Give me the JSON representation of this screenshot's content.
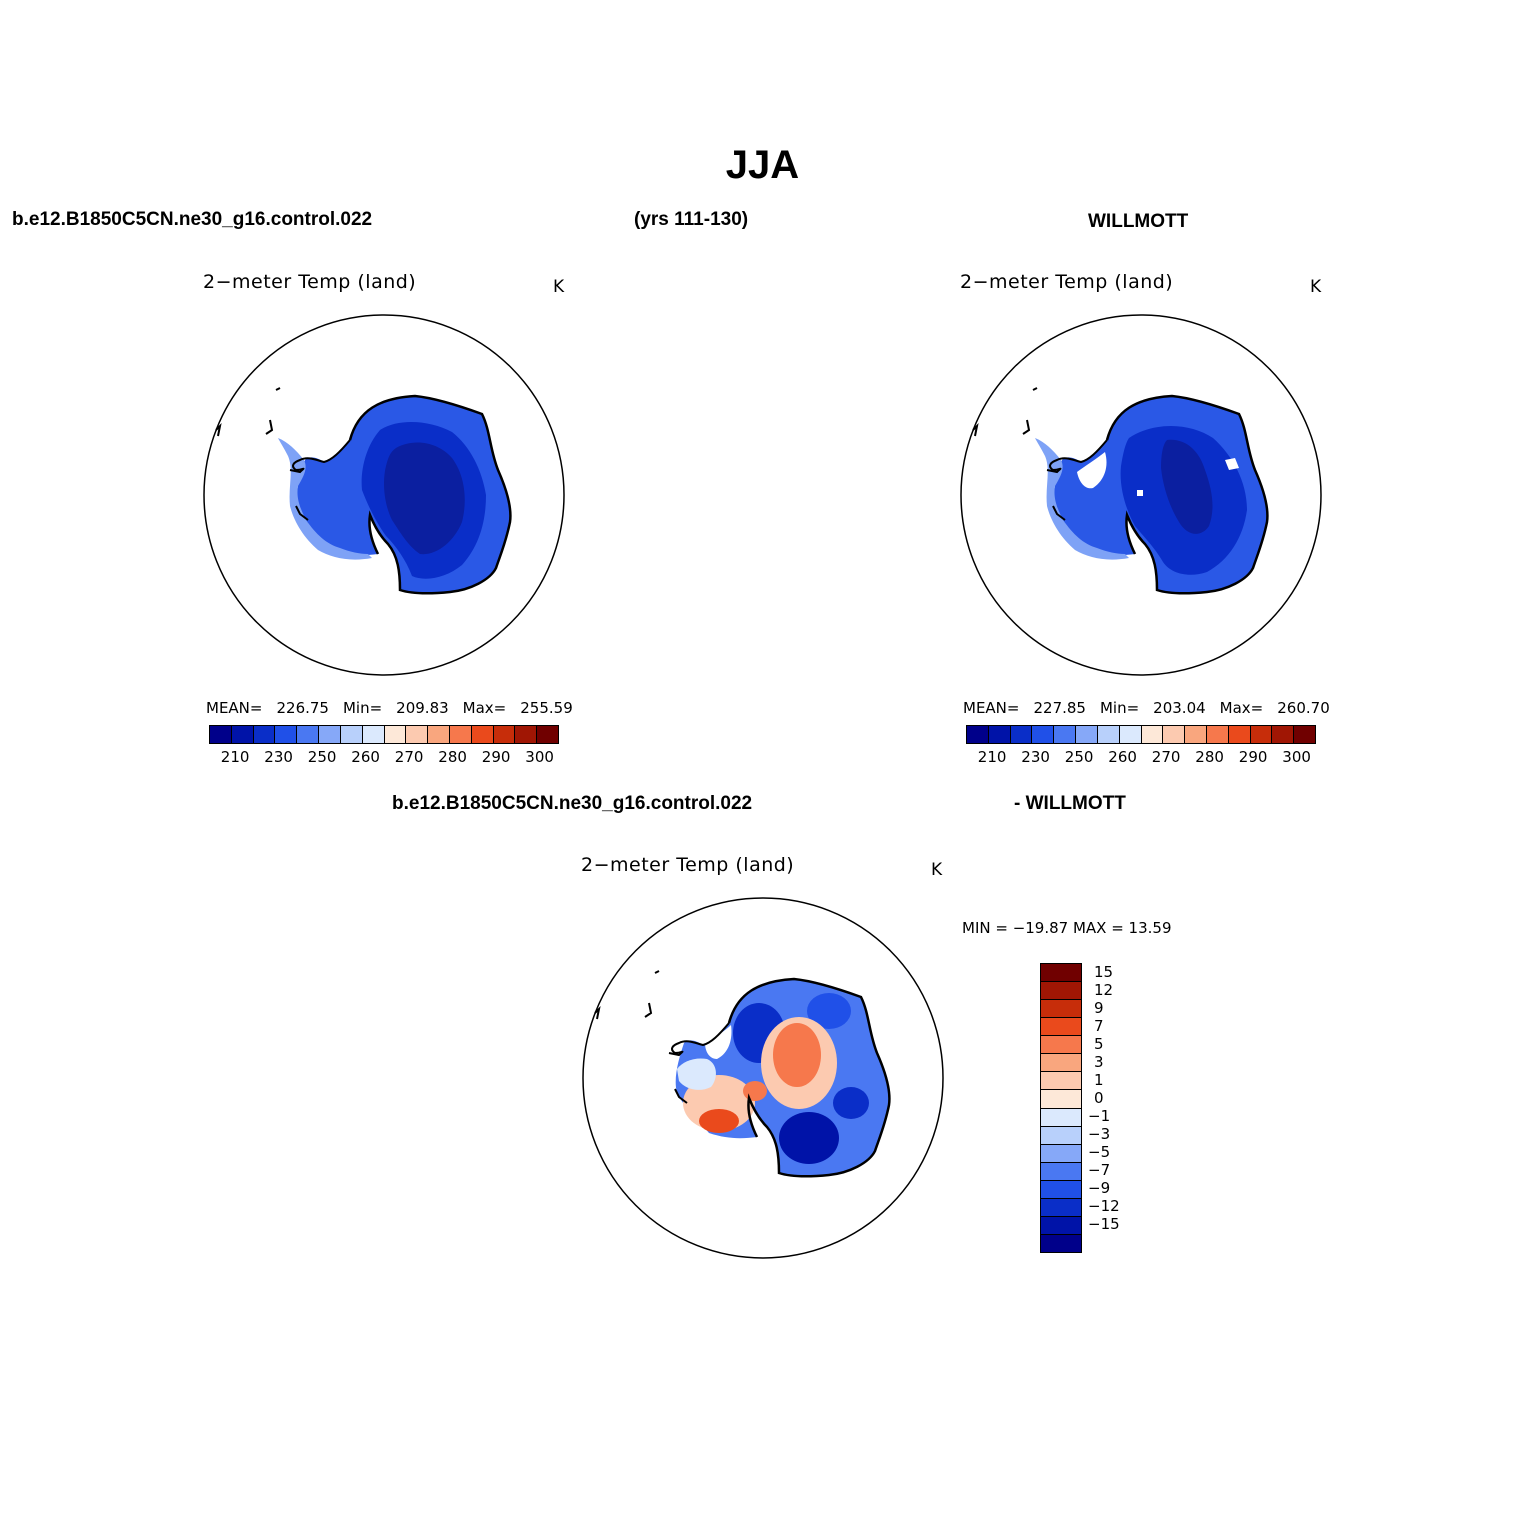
{
  "title": "JJA",
  "header": {
    "case_name": "b.e12.B1850C5CN.ne30_g16.control.022",
    "years": "(yrs 111-130)",
    "obs_name": "WILLMOTT"
  },
  "diff_header": {
    "case_name": "b.e12.B1850C5CN.ne30_g16.control.022",
    "obs_name": "- WILLMOTT"
  },
  "panels": [
    {
      "id": "model",
      "variable": "2−meter Temp (land)",
      "units": "K",
      "mean_label": "MEAN=",
      "mean": "226.75",
      "min_label": "Min=",
      "min": "209.83",
      "max_label": "Max=",
      "max": "255.59"
    },
    {
      "id": "obs",
      "variable": "2−meter Temp (land)",
      "units": "K",
      "mean_label": "MEAN=",
      "mean": "227.85",
      "min_label": "Min=",
      "min": "203.04",
      "max_label": "Max=",
      "max": "260.70"
    }
  ],
  "diff_panel": {
    "variable": "2−meter Temp (land)",
    "units": "K",
    "minmax_text": "MIN = −19.87  MAX =   13.59"
  },
  "abs_colorbar": {
    "colors": [
      "#00008a",
      "#0013a8",
      "#0a2ec8",
      "#2050e8",
      "#4a78f2",
      "#86a8f8",
      "#b8d0fb",
      "#dbe9fd",
      "#fde8d8",
      "#fccab0",
      "#f9a67e",
      "#f6784c",
      "#ea4a1c",
      "#c72d0a",
      "#a01604",
      "#700000"
    ],
    "labels": [
      "210",
      "230",
      "250",
      "260",
      "270",
      "280",
      "290",
      "300"
    ]
  },
  "diff_colorbar": {
    "colors": [
      "#700000",
      "#a01604",
      "#c72d0a",
      "#ea4a1c",
      "#f6784c",
      "#f9a67e",
      "#fccab0",
      "#fde8d8",
      "#dbe9fd",
      "#b8d0fb",
      "#86a8f8",
      "#4a78f2",
      "#2050e8",
      "#0a2ec8",
      "#0013a8",
      "#00008a"
    ],
    "labels": [
      "15",
      "12",
      "9",
      "7",
      "5",
      "3",
      "1",
      "0",
      "−1",
      "−3",
      "−5",
      "−7",
      "−9",
      "−12",
      "−15"
    ]
  },
  "map_colors": {
    "deep": "#0b1fa0",
    "mid": "#0a2ec8",
    "edge": "#2a58e6",
    "light": "#7ea2f6",
    "warm": "#f6784c",
    "warm_light": "#fccab0",
    "warm_dark": "#ea4a1c"
  }
}
